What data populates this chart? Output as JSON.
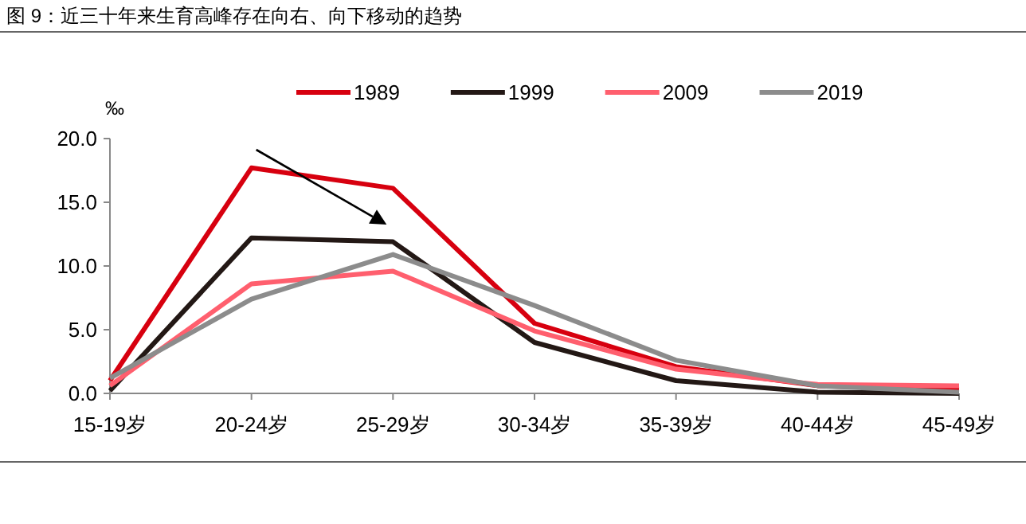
{
  "chart_data": {
    "type": "line",
    "title": "图 9：近三十年来生育高峰存在向右、向下移动的趋势",
    "ylabel": "‰",
    "categories": [
      "15-19岁",
      "20-24岁",
      "25-29岁",
      "30-34岁",
      "35-39岁",
      "40-44岁",
      "45-49岁"
    ],
    "series": [
      {
        "name": "1989",
        "color": "#d7000f",
        "values": [
          1.0,
          17.7,
          16.1,
          5.5,
          2.1,
          0.6,
          0.3
        ]
      },
      {
        "name": "1999",
        "color": "#231815",
        "values": [
          0.2,
          12.2,
          11.9,
          4.0,
          1.0,
          0.1,
          0.0
        ]
      },
      {
        "name": "2009",
        "color": "#ff5f6e",
        "values": [
          0.6,
          8.6,
          9.6,
          4.9,
          1.9,
          0.7,
          0.6
        ]
      },
      {
        "name": "2019",
        "color": "#8c8c8c",
        "values": [
          1.2,
          7.4,
          10.9,
          6.9,
          2.6,
          0.6,
          0.1
        ]
      }
    ],
    "ylim": [
      0,
      20
    ],
    "yticks": [
      {
        "value": 0,
        "label": "0.0"
      },
      {
        "value": 5,
        "label": "5.0"
      },
      {
        "value": 10,
        "label": "10.0"
      },
      {
        "value": 15,
        "label": "15.0"
      },
      {
        "value": 20,
        "label": "20.0"
      }
    ],
    "grid": false,
    "legend": "top",
    "marker": "none",
    "line_style": "solid"
  }
}
